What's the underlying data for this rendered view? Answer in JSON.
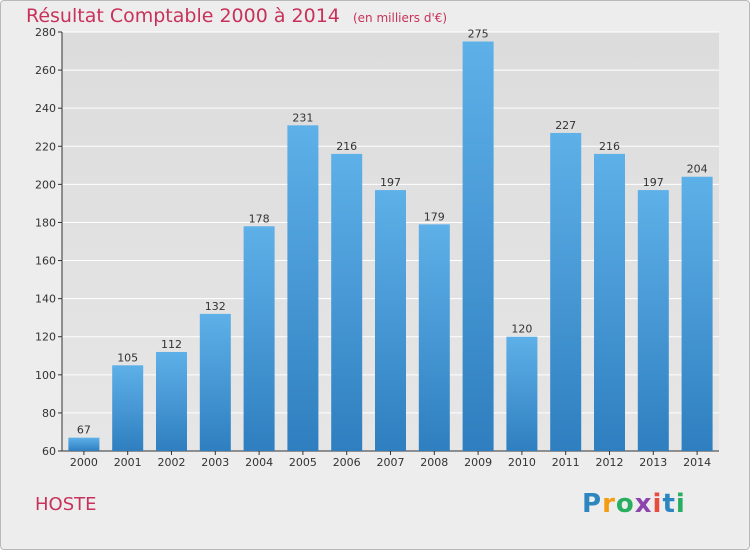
{
  "header": {
    "title": "Résultat Comptable 2000 à 2014",
    "subtitle": "(en milliers d'€)"
  },
  "footer": {
    "commune": "HOSTE",
    "logo_text": "Proxiti"
  },
  "colors": {
    "title": "#c8325a",
    "bar_top": "#5eb0e8",
    "bar_bottom": "#2f7fc0",
    "grid": "#ffffff",
    "axis": "#333333"
  },
  "chart_data": {
    "type": "bar",
    "title": "Résultat Comptable 2000 à 2014",
    "xlabel": "",
    "ylabel": "",
    "ylim": [
      60,
      280
    ],
    "yticks": [
      60,
      80,
      100,
      120,
      140,
      160,
      180,
      200,
      220,
      240,
      260,
      280
    ],
    "grid": true,
    "categories": [
      "2000",
      "2001",
      "2002",
      "2003",
      "2004",
      "2005",
      "2006",
      "2007",
      "2008",
      "2009",
      "2010",
      "2011",
      "2012",
      "2013",
      "2014"
    ],
    "values": [
      67,
      105,
      112,
      132,
      178,
      231,
      216,
      197,
      179,
      275,
      120,
      227,
      216,
      197,
      204
    ]
  }
}
